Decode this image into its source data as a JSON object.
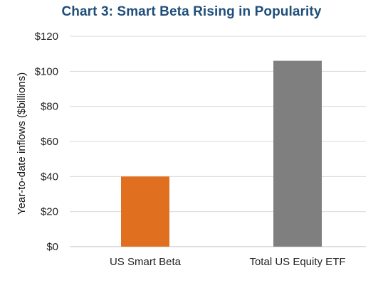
{
  "chart_data": {
    "type": "bar",
    "title": "Chart 3: Smart Beta Rising in Popularity",
    "xlabel": "",
    "ylabel": "Year-to-date inflows ($billions)",
    "categories": [
      "US Smart Beta",
      "Total US Equity ETF"
    ],
    "values": [
      40,
      106
    ],
    "bar_colors": [
      "#e07020",
      "#7f7f7f"
    ],
    "ylim": [
      0,
      120
    ],
    "yticks": [
      0,
      20,
      40,
      60,
      80,
      100,
      120
    ],
    "ytick_labels": [
      "$0",
      "$20",
      "$40",
      "$60",
      "$80",
      "$100",
      "$120"
    ],
    "grid": true,
    "legend": "none"
  },
  "colors": {
    "title": "#1f4e79",
    "grid": "#d9d9d9"
  }
}
